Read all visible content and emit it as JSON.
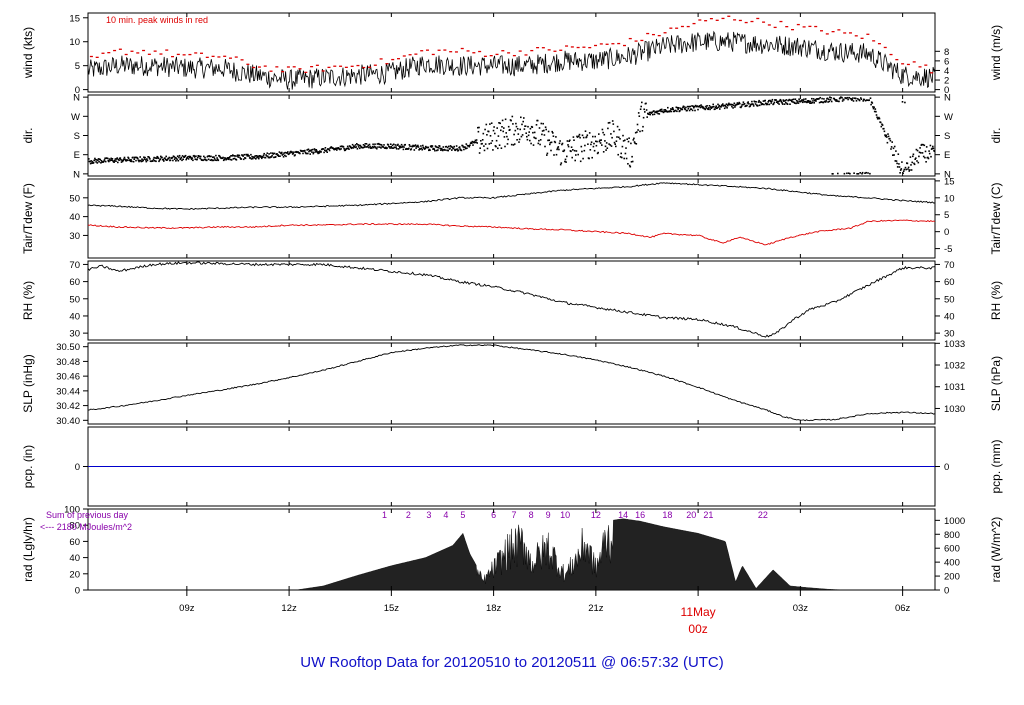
{
  "figure": {
    "title": "UW Rooftop Data for 20120510  to  20120511 @ 06:57:32  (UTC)",
    "title_color": "#1010c8",
    "x_ticks": [
      {
        "hour": 9,
        "label": "09z"
      },
      {
        "hour": 12,
        "label": "12z"
      },
      {
        "hour": 15,
        "label": "15z"
      },
      {
        "hour": 18,
        "label": "18z"
      },
      {
        "hour": 21,
        "label": "21z"
      },
      {
        "hour": 24,
        "label": "00z"
      },
      {
        "hour": 27,
        "label": "03z"
      },
      {
        "hour": 30,
        "label": "06z"
      }
    ],
    "date_marker": {
      "hour": 24,
      "label": "11May",
      "color": "#dd0000"
    },
    "x_range_hours": [
      6.1,
      30.95
    ]
  },
  "chart_data": [
    {
      "id": "wind",
      "type": "line",
      "ylabel": "wind (kts)",
      "ylabel_right": "wind (m/s)",
      "ylim": [
        -0.5,
        16
      ],
      "ticks_left": [
        0,
        5,
        10,
        15
      ],
      "ticks_right": [
        {
          "label": "0",
          "v": 0
        },
        {
          "label": "2",
          "v": 2
        },
        {
          "label": "4",
          "v": 4
        },
        {
          "label": "6",
          "v": 6
        },
        {
          "label": "8",
          "v": 8
        }
      ],
      "annotation": "10 min. peak winds in red",
      "annotation_color": "#dd0000",
      "series": [
        {
          "color": "#000000",
          "x": [
            6.1,
            7,
            8,
            9,
            10,
            11,
            12,
            13,
            14,
            15,
            16,
            17,
            18,
            19,
            20,
            21,
            22,
            23,
            24,
            25,
            26,
            27,
            28,
            29,
            30,
            30.95
          ],
          "y": [
            4,
            5,
            5,
            4.5,
            4.5,
            3,
            2,
            2.5,
            3,
            3.5,
            5.5,
            5,
            5,
            5,
            6,
            6,
            7,
            9,
            10,
            10,
            9.5,
            9,
            8,
            7.5,
            3,
            2.5
          ]
        },
        {
          "color": "#dd0000",
          "x": [
            6.1,
            7,
            8,
            9,
            10,
            11,
            12,
            13,
            14,
            15,
            16,
            17,
            18,
            19,
            20,
            21,
            22,
            23,
            24,
            25,
            26,
            27,
            28,
            29,
            30,
            30.95
          ],
          "y": [
            6,
            8,
            8,
            7,
            7,
            5,
            4,
            4.5,
            5,
            6,
            8,
            8,
            7.5,
            8,
            8.5,
            9,
            10,
            12,
            14,
            15,
            14,
            13,
            12,
            11,
            6,
            4
          ]
        }
      ]
    },
    {
      "id": "dir",
      "type": "scatter",
      "ylabel": "dir.",
      "ylabel_right": "dir.",
      "ylim": [
        -10,
        370
      ],
      "ticks_left": [
        {
          "label": "N",
          "v": 0
        },
        {
          "label": "E",
          "v": 90
        },
        {
          "label": "S",
          "v": 180
        },
        {
          "label": "W",
          "v": 270
        },
        {
          "label": "N",
          "v": 360
        }
      ],
      "ticks_right": [
        {
          "label": "N",
          "v": 0
        },
        {
          "label": "E",
          "v": 90
        },
        {
          "label": "S",
          "v": 180
        },
        {
          "label": "W",
          "v": 270
        },
        {
          "label": "N",
          "v": 360
        }
      ],
      "series": [
        {
          "color": "#000000",
          "x": [
            6.1,
            7,
            8,
            9,
            10,
            11,
            12,
            13,
            14,
            15,
            16,
            17,
            18,
            19,
            20,
            21,
            21.5,
            22,
            22.3,
            23,
            24,
            25,
            26,
            27,
            28,
            29,
            30,
            30.5,
            30.95
          ],
          "y": [
            60,
            65,
            70,
            75,
            75,
            80,
            95,
            110,
            130,
            130,
            120,
            120,
            180,
            220,
            100,
            150,
            180,
            90,
            270,
            300,
            310,
            320,
            335,
            340,
            350,
            355,
            0,
            100,
            90
          ]
        }
      ]
    },
    {
      "id": "temp",
      "type": "line",
      "ylabel": "Tair/Tdew (F)",
      "ylabel_right": "Tair/Tdew (C)",
      "ylim": [
        18,
        60
      ],
      "ticks_left": [
        30,
        40,
        50
      ],
      "ticks_right": [
        {
          "label": "-5",
          "v": 23
        },
        {
          "label": "0",
          "v": 32
        },
        {
          "label": "5",
          "v": 41
        },
        {
          "label": "10",
          "v": 50
        },
        {
          "label": "15",
          "v": 59
        }
      ],
      "series": [
        {
          "color": "#000000",
          "x": [
            6.1,
            7,
            8,
            9,
            10,
            11,
            12,
            13,
            14,
            15,
            16,
            17,
            18,
            19,
            20,
            21,
            22,
            23,
            24,
            25,
            26,
            27,
            28,
            29,
            30,
            30.95
          ],
          "y": [
            46,
            45.5,
            44.5,
            44,
            44.5,
            45,
            45,
            45.5,
            46,
            47,
            48,
            50,
            50,
            52,
            54,
            55,
            56,
            58,
            57,
            56,
            55,
            53,
            51,
            50,
            48.5,
            47.5
          ]
        },
        {
          "color": "#dd0000",
          "x": [
            6.1,
            7,
            8,
            9,
            10,
            11,
            12,
            13,
            14,
            15,
            16,
            17,
            18,
            19,
            20,
            21,
            22,
            22.6,
            23,
            24,
            24.7,
            25.2,
            26,
            26.7,
            27.5,
            28.5,
            29,
            30,
            30.95
          ],
          "y": [
            35.5,
            34.5,
            34,
            34,
            34.5,
            34.5,
            35.5,
            35.5,
            36,
            36,
            36,
            35,
            34.5,
            33.5,
            33,
            32,
            31,
            29,
            31,
            30,
            26,
            29,
            25,
            29,
            32,
            34,
            37.5,
            38,
            37.5
          ]
        }
      ]
    },
    {
      "id": "rh",
      "type": "line",
      "ylabel": "RH (%)",
      "ylabel_right": "RH (%)",
      "ylim": [
        26,
        72
      ],
      "ticks_left": [
        30,
        40,
        50,
        60,
        70
      ],
      "ticks_right": [
        {
          "label": "30",
          "v": 30
        },
        {
          "label": "40",
          "v": 40
        },
        {
          "label": "50",
          "v": 50
        },
        {
          "label": "60",
          "v": 60
        },
        {
          "label": "70",
          "v": 70
        }
      ],
      "series": [
        {
          "color": "#000000",
          "x": [
            6.1,
            6.5,
            7,
            8,
            9,
            10,
            11,
            12,
            13,
            14,
            15,
            16,
            17,
            18,
            19,
            20,
            21,
            22,
            23,
            24,
            25,
            26,
            26.3,
            26.8,
            27.3,
            28,
            29,
            30,
            30.95
          ],
          "y": [
            67,
            69,
            66,
            70,
            71,
            70.5,
            70,
            70,
            70,
            68,
            66,
            64,
            60,
            57,
            53,
            48,
            45,
            42,
            39,
            38,
            34,
            28,
            30,
            38,
            44,
            48,
            58,
            68,
            68
          ]
        }
      ]
    },
    {
      "id": "slp",
      "type": "line",
      "ylabel": "SLP (inHg)",
      "ylabel_right": "SLP (hPa)",
      "ylim": [
        30.395,
        30.505
      ],
      "ticks_left": [
        30.4,
        30.42,
        30.44,
        30.46,
        30.48,
        30.5
      ],
      "ticks_right": [
        {
          "label": "1030",
          "v": 30.4161
        },
        {
          "label": "1031",
          "v": 30.4456
        },
        {
          "label": "1032",
          "v": 30.4751
        },
        {
          "label": "1033",
          "v": 30.5046
        }
      ],
      "series": [
        {
          "color": "#000000",
          "x": [
            6.1,
            7,
            8,
            9,
            10,
            11,
            12,
            13,
            14,
            15,
            16,
            17,
            18,
            19,
            20,
            21,
            22,
            23,
            24,
            25,
            26,
            26.5,
            27,
            28,
            29,
            30,
            30.95
          ],
          "y": [
            30.414,
            30.419,
            30.426,
            30.434,
            30.441,
            30.449,
            30.458,
            30.468,
            30.48,
            30.492,
            30.498,
            30.502,
            30.502,
            30.496,
            30.49,
            30.482,
            30.472,
            30.46,
            30.445,
            30.428,
            30.414,
            30.405,
            30.4,
            30.401,
            30.409,
            30.411,
            30.409
          ]
        }
      ]
    },
    {
      "id": "pcp",
      "type": "line",
      "ylabel": "pcp. (in)",
      "ylabel_right": "pcp. (mm)",
      "ylim": [
        -1,
        1
      ],
      "ticks_left": [
        0
      ],
      "ticks_right": [
        {
          "label": "0",
          "v": 0
        }
      ],
      "series": [
        {
          "color": "#0000cc",
          "x": [
            6.1,
            30.95
          ],
          "y": [
            0,
            0
          ]
        }
      ]
    },
    {
      "id": "rad",
      "type": "area",
      "ylabel": "rad (Lgly/hr)",
      "ylabel_right": "rad (W/m^2)",
      "ylim": [
        0,
        100
      ],
      "ticks_left": [
        0,
        20,
        40,
        60,
        80,
        100
      ],
      "ticks_right": [
        {
          "label": "0",
          "v": 0
        },
        {
          "label": "200",
          "v": 17.2
        },
        {
          "label": "400",
          "v": 34.4
        },
        {
          "label": "600",
          "v": 51.6
        },
        {
          "label": "800",
          "v": 68.8
        },
        {
          "label": "1000",
          "v": 86
        }
      ],
      "sum_label": "Sum of previous day",
      "sum_value": "<--- 2180 MJoules/m^2",
      "sum_color": "#8800aa",
      "hour_labels": [
        {
          "hour": 14.8,
          "label": "1"
        },
        {
          "hour": 15.5,
          "label": "2"
        },
        {
          "hour": 16.1,
          "label": "3"
        },
        {
          "hour": 16.6,
          "label": "4"
        },
        {
          "hour": 17.1,
          "label": "5"
        },
        {
          "hour": 18.0,
          "label": "6"
        },
        {
          "hour": 18.6,
          "label": "7"
        },
        {
          "hour": 19.1,
          "label": "8"
        },
        {
          "hour": 19.6,
          "label": "9"
        },
        {
          "hour": 20.1,
          "label": "10"
        },
        {
          "hour": 21.0,
          "label": "12"
        },
        {
          "hour": 21.8,
          "label": "14"
        },
        {
          "hour": 22.3,
          "label": "16"
        },
        {
          "hour": 23.1,
          "label": "18"
        },
        {
          "hour": 23.8,
          "label": "20"
        },
        {
          "hour": 24.3,
          "label": "21"
        },
        {
          "hour": 25.9,
          "label": "22"
        }
      ],
      "series": [
        {
          "color": "#222222",
          "x": [
            12.2,
            13,
            14,
            15,
            16,
            16.8,
            17.1,
            17.3,
            17.7,
            18.2,
            18.4,
            18.9,
            19.1,
            19.6,
            20.1,
            20.4,
            20.7,
            21.0,
            21.3,
            21.8,
            22.3,
            23,
            24,
            24.8,
            25.1,
            25.3,
            25.7,
            26.2,
            26.7,
            27.2,
            27.8,
            28.3
          ],
          "y": [
            0,
            5,
            18,
            30,
            40,
            55,
            70,
            45,
            15,
            50,
            65,
            80,
            45,
            72,
            25,
            50,
            80,
            35,
            85,
            88,
            85,
            78,
            70,
            60,
            10,
            30,
            2,
            25,
            5,
            3,
            1,
            0
          ]
        }
      ]
    }
  ]
}
